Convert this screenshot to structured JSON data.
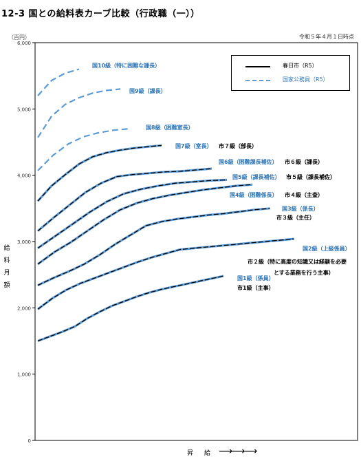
{
  "title": "12-3 国との給料表カーブ比較（行政職（一））",
  "unit_label": "（百円）",
  "date_label": "令和５年４月１日時点",
  "legend": {
    "city_label": "春日市（R5）",
    "national_label": "国家公務員（R5）"
  },
  "ylabel_chars": [
    "給",
    "料",
    "月",
    "額"
  ],
  "xlabel": "昇給",
  "xlabel_arrow": "⟶",
  "colors": {
    "city": "#000000",
    "national": "#5b9bd5",
    "label_blue": "#2e75b6"
  },
  "chart_data": {
    "type": "line",
    "ylim": [
      0,
      6000
    ],
    "yticks": [
      "0",
      "1,000",
      "2,000",
      "3,000",
      "4,000",
      "5,000",
      "6,000"
    ],
    "xlabel": "昇給",
    "ylabel": "給料月額",
    "grid": false,
    "series": [
      {
        "name": "国1級（係員）",
        "style": "national",
        "label": "国1級（係員）",
        "values": [
          1500,
          1570,
          1640,
          1720,
          1840,
          1940,
          2030,
          2100,
          2170,
          2230,
          2280,
          2320,
          2360,
          2400,
          2440,
          2480
        ]
      },
      {
        "name": "市1級（主事）",
        "style": "city",
        "label": "市1級（主事）",
        "values": [
          1500,
          1570,
          1640,
          1720,
          1840,
          1940,
          2030,
          2100,
          2170,
          2230,
          2280,
          2320,
          2360,
          2400,
          2440,
          2480
        ]
      },
      {
        "name": "国2級（上級係員）",
        "style": "national",
        "label": "国2級（上級係員）",
        "values": [
          1980,
          2140,
          2270,
          2370,
          2450,
          2530,
          2610,
          2690,
          2760,
          2820,
          2880,
          2900,
          2920,
          2940,
          2960,
          2980,
          3000,
          3020,
          3040
        ]
      },
      {
        "name": "市2級（特に高度の知識又は経験を必要とする業務を行う主事）",
        "style": "city",
        "label": "市２級（特に高度の知識又は経験を必要とする業務を行う主事）",
        "values": [
          1980,
          2140,
          2270,
          2370,
          2450,
          2530,
          2610,
          2690,
          2760,
          2820,
          2880,
          2900,
          2920,
          2940,
          2960,
          2980,
          3000,
          3020,
          3040
        ]
      },
      {
        "name": "国3級（係長）",
        "style": "national",
        "label": "国3級（係長）",
        "values": [
          2340,
          2450,
          2550,
          2660,
          2800,
          2960,
          3100,
          3240,
          3300,
          3340,
          3370,
          3400,
          3420,
          3450,
          3480,
          3500
        ]
      },
      {
        "name": "市3級（主任）",
        "style": "city",
        "label": "市３級（主任）",
        "values": [
          2340,
          2450,
          2550,
          2660,
          2800,
          2960,
          3100,
          3240,
          3300,
          3340,
          3370,
          3400,
          3420,
          3450,
          3480,
          3500
        ]
      },
      {
        "name": "国4級（困難係長）",
        "style": "national",
        "label": "国4級（困難係長）",
        "values": [
          2660,
          2840,
          2990,
          3160,
          3330,
          3480,
          3580,
          3650,
          3700,
          3740,
          3780,
          3810,
          3840,
          3860
        ]
      },
      {
        "name": "市4級（主査）",
        "style": "city",
        "label": "市４級（主査）",
        "values": [
          2660,
          2840,
          2990,
          3160,
          3330,
          3480,
          3580,
          3650,
          3700,
          3740,
          3780,
          3810,
          3840,
          3860
        ]
      },
      {
        "name": "国5級（課長補佐）",
        "style": "national",
        "label": "国5級（課長補佐）",
        "values": [
          2900,
          3080,
          3260,
          3440,
          3600,
          3720,
          3790,
          3840,
          3880,
          3900,
          3920,
          3930
        ]
      },
      {
        "name": "市5級（課長補佐）",
        "style": "city",
        "label": "市５級（課長補佐）",
        "values": [
          2900,
          3080,
          3260,
          3440,
          3600,
          3720,
          3790,
          3840,
          3880,
          3900,
          3920,
          3930
        ]
      },
      {
        "name": "国6級（困難課長補佐）",
        "style": "national",
        "label": "国6級（困難課長補佐）",
        "values": [
          3160,
          3360,
          3550,
          3740,
          3880,
          3980,
          4010,
          4030,
          4050,
          4060,
          4080,
          4100
        ]
      },
      {
        "name": "市6級（課長）",
        "style": "city",
        "label": "市６級（課長）",
        "values": [
          3160,
          3360,
          3550,
          3740,
          3880,
          3980,
          4010,
          4030,
          4050,
          4060,
          4080,
          4100
        ]
      },
      {
        "name": "国7級（室長）",
        "style": "national",
        "label": "国7級（室長）",
        "values": [
          3610,
          3840,
          4010,
          4170,
          4280,
          4340,
          4380,
          4410,
          4430,
          4450
        ]
      },
      {
        "name": "市7級（部長）",
        "style": "city",
        "label": "市７級（部長）",
        "values": [
          3610,
          3840,
          4010,
          4170,
          4280,
          4340,
          4380,
          4410,
          4430,
          4450
        ]
      },
      {
        "name": "国8級（困難室長）",
        "style": "national_only",
        "label": "国8級（困難室長）",
        "values": [
          4070,
          4300,
          4470,
          4580,
          4640,
          4680,
          4700
        ]
      },
      {
        "name": "国9級（課長）",
        "style": "national_only",
        "label": "国9級（課長）",
        "values": [
          4570,
          4890,
          5070,
          5170,
          5240,
          5280,
          5300
        ]
      },
      {
        "name": "国10級（特に困難な課長）",
        "style": "national_only",
        "label": "国10級（特に困難な課長）",
        "values": [
          5200,
          5430,
          5540,
          5600
        ]
      }
    ]
  }
}
